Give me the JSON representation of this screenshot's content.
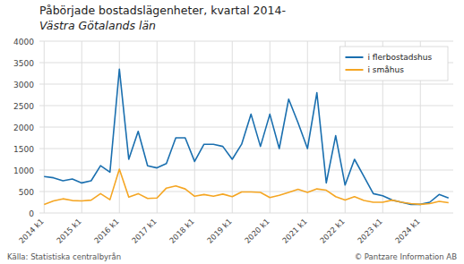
{
  "chart_data": {
    "type": "line",
    "title": "Påbörjade bostadslägenheter, kvartal 2014-",
    "subtitle": "Västra Götalands län",
    "annotations": [
      "Källa: Statistiska centralbyrån",
      "© Pantzare Information AB"
    ],
    "categories": [
      "2014 k1",
      null,
      null,
      null,
      "2015 k1",
      null,
      null,
      null,
      "2016 k1",
      null,
      null,
      null,
      "2017 k1",
      null,
      null,
      null,
      "2018 k1",
      null,
      null,
      null,
      "2019 k1",
      null,
      null,
      null,
      "2020 k1",
      null,
      null,
      null,
      "2021 k1",
      null,
      null,
      null,
      "2022 k1",
      null,
      null,
      null,
      "2023 k1",
      null,
      null,
      null,
      "2024 k1",
      null,
      null,
      null
    ],
    "series": [
      {
        "name": "i flerbostadshus",
        "color": "#1a6faf",
        "values": [
          850,
          820,
          750,
          790,
          700,
          750,
          1100,
          950,
          3350,
          1250,
          1900,
          1100,
          1050,
          1150,
          1750,
          1750,
          1200,
          1600,
          1600,
          1550,
          1250,
          1600,
          2300,
          1550,
          2300,
          1500,
          2650,
          2100,
          1500,
          2800,
          700,
          1800,
          650,
          1250,
          850,
          450,
          400,
          300,
          250,
          200,
          200,
          250,
          430,
          350
        ]
      },
      {
        "name": "i småhus",
        "color": "#f5a623",
        "values": [
          200,
          280,
          330,
          290,
          280,
          300,
          450,
          310,
          1020,
          370,
          450,
          340,
          350,
          580,
          630,
          560,
          390,
          430,
          390,
          440,
          380,
          490,
          490,
          480,
          360,
          410,
          480,
          550,
          480,
          560,
          530,
          380,
          300,
          380,
          290,
          250,
          250,
          300,
          250,
          220,
          200,
          220,
          270,
          240
        ]
      }
    ],
    "ylim": [
      0,
      4000
    ],
    "yticks": [
      0,
      500,
      1000,
      1500,
      2000,
      2500,
      3000,
      3500,
      4000
    ],
    "grid": true,
    "legend": "upper right"
  }
}
